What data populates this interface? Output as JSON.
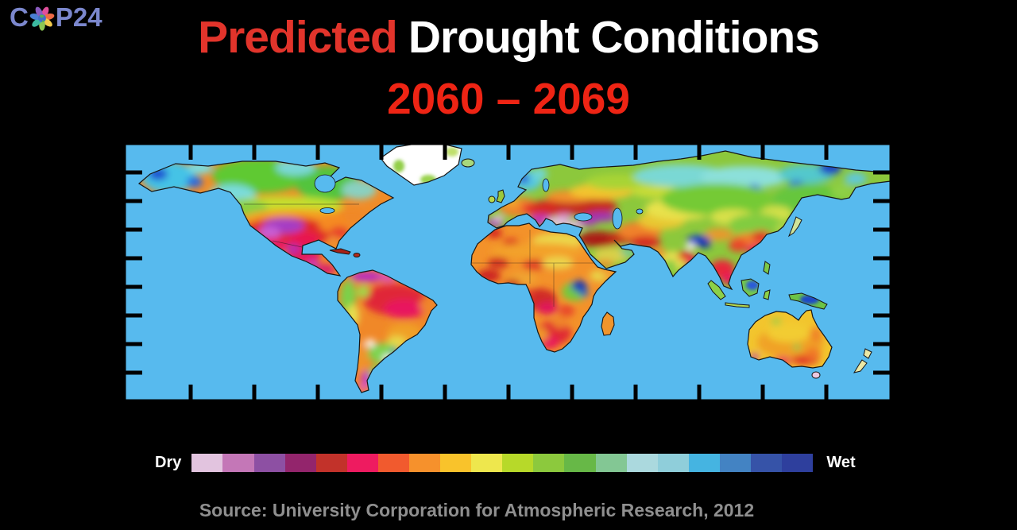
{
  "canvas": {
    "background": "#000000"
  },
  "logo": {
    "prefix": "C",
    "suffix": "P24",
    "full_text": "COP24",
    "letter_color": "#7b87cd",
    "flower_icon": "cop24-flower-globe",
    "petal_colors": [
      "#e04f9b",
      "#ee6a45",
      "#f2c94c",
      "#8dc653",
      "#3cb9a0",
      "#4a7fd4",
      "#8a5bbf"
    ],
    "globe_water_color": "#3f6fc8",
    "globe_land_color": "#59b054"
  },
  "title": {
    "line1_highlight": "Predicted",
    "line1_rest": "Drought Conditions",
    "line2": "2060 – 2069",
    "highlight_color": "#e2342b",
    "rest_color": "#ffffff",
    "line2_color": "#ee2414"
  },
  "map": {
    "ocean_color": "#57baee",
    "no_data_color": "#ffffff",
    "outline_color": "#161616",
    "tick_color": "#000000"
  },
  "legend": {
    "left_label": "Dry",
    "right_label": "Wet",
    "label_color": "#ffffff",
    "colorbar_colors": [
      "#e2c4df",
      "#c477b7",
      "#8d50a3",
      "#93256c",
      "#c2322a",
      "#ee1b60",
      "#f15a2e",
      "#f6912c",
      "#f9c32b",
      "#eee74d",
      "#b7d929",
      "#8cc93d",
      "#67b847",
      "#83c794",
      "#abd9de",
      "#8fceda",
      "#45b4e1",
      "#4383c3",
      "#3653a8",
      "#2e3f9d"
    ]
  },
  "source": {
    "text": "Source: University Corporation for Atmospheric Research, 2012",
    "color": "#8f8f8f"
  },
  "chart_data": {
    "type": "choropleth-map",
    "title": "Predicted Drought Conditions 2060 – 2069",
    "scale": {
      "left_end": "Dry",
      "right_end": "Wet",
      "steps": 20
    },
    "regions": [
      {
        "region": "Alaska / northwest Canada",
        "condition": "wet (cyan with dark blue patches)"
      },
      {
        "region": "Northern Canada",
        "condition": "moderately wet (green)"
      },
      {
        "region": "Western and central United States",
        "condition": "extreme drought (red with purple patches)"
      },
      {
        "region": "Eastern United States",
        "condition": "severe drought (orange)"
      },
      {
        "region": "Mexico and Central America",
        "condition": "extreme drought (crimson/purple)"
      },
      {
        "region": "Greenland",
        "condition": "no data (white)"
      },
      {
        "region": "Amazon Basin / northern South America",
        "condition": "extreme drought (red/magenta, purple north coast)"
      },
      {
        "region": "Pampas / Argentina",
        "condition": "slightly wet (green, small blue spot)"
      },
      {
        "region": "Patagonia",
        "condition": "extreme drought (orange/purple/magenta)"
      },
      {
        "region": "Scandinavia / northern Europe",
        "condition": "wet (cyan, blue patch)"
      },
      {
        "region": "Western Europe",
        "condition": "severe drought (orange/red)"
      },
      {
        "region": "Mediterranean, Balkans and Turkey",
        "condition": "exceptional drought (purple/pale pink)"
      },
      {
        "region": "Eastern Europe / western Russia",
        "condition": "extreme drought (red band)"
      },
      {
        "region": "Sahara / North Africa",
        "condition": "severe drought (orange and yellow)"
      },
      {
        "region": "West and Central Africa (Congo)",
        "condition": "extreme drought (dark red/crimson)"
      },
      {
        "region": "East Africa around Lake Victoria",
        "condition": "very wet (dark blue patch in green)"
      },
      {
        "region": "Southern Africa",
        "condition": "extreme drought (red/crimson)"
      },
      {
        "region": "Madagascar",
        "condition": "severe drought (orange)"
      },
      {
        "region": "Middle East / Levant / Iraq",
        "condition": "exceptional drought (dark brick red)"
      },
      {
        "region": "Central Asia / Kazakhstan",
        "condition": "moderate drought (orange to yellow-green)"
      },
      {
        "region": "Siberia",
        "condition": "wet (green/cyan with dark blue patches)"
      },
      {
        "region": "Tibetan Plateau / Himalaya",
        "condition": "very wet (dark blue patch)"
      },
      {
        "region": "India",
        "condition": "moderate (yellow/green core, orange-red edges)"
      },
      {
        "region": "Southern China / Southeast Asia",
        "condition": "extreme drought (red/crimson)"
      },
      {
        "region": "Indonesia / Borneo / New Guinea",
        "condition": "wet (green with blue patches)"
      },
      {
        "region": "Australia",
        "condition": "severe drought (yellow/orange, red southern rim, purple southwest spot)"
      },
      {
        "region": "New Zealand",
        "condition": "near normal (pale yellow)"
      }
    ]
  }
}
